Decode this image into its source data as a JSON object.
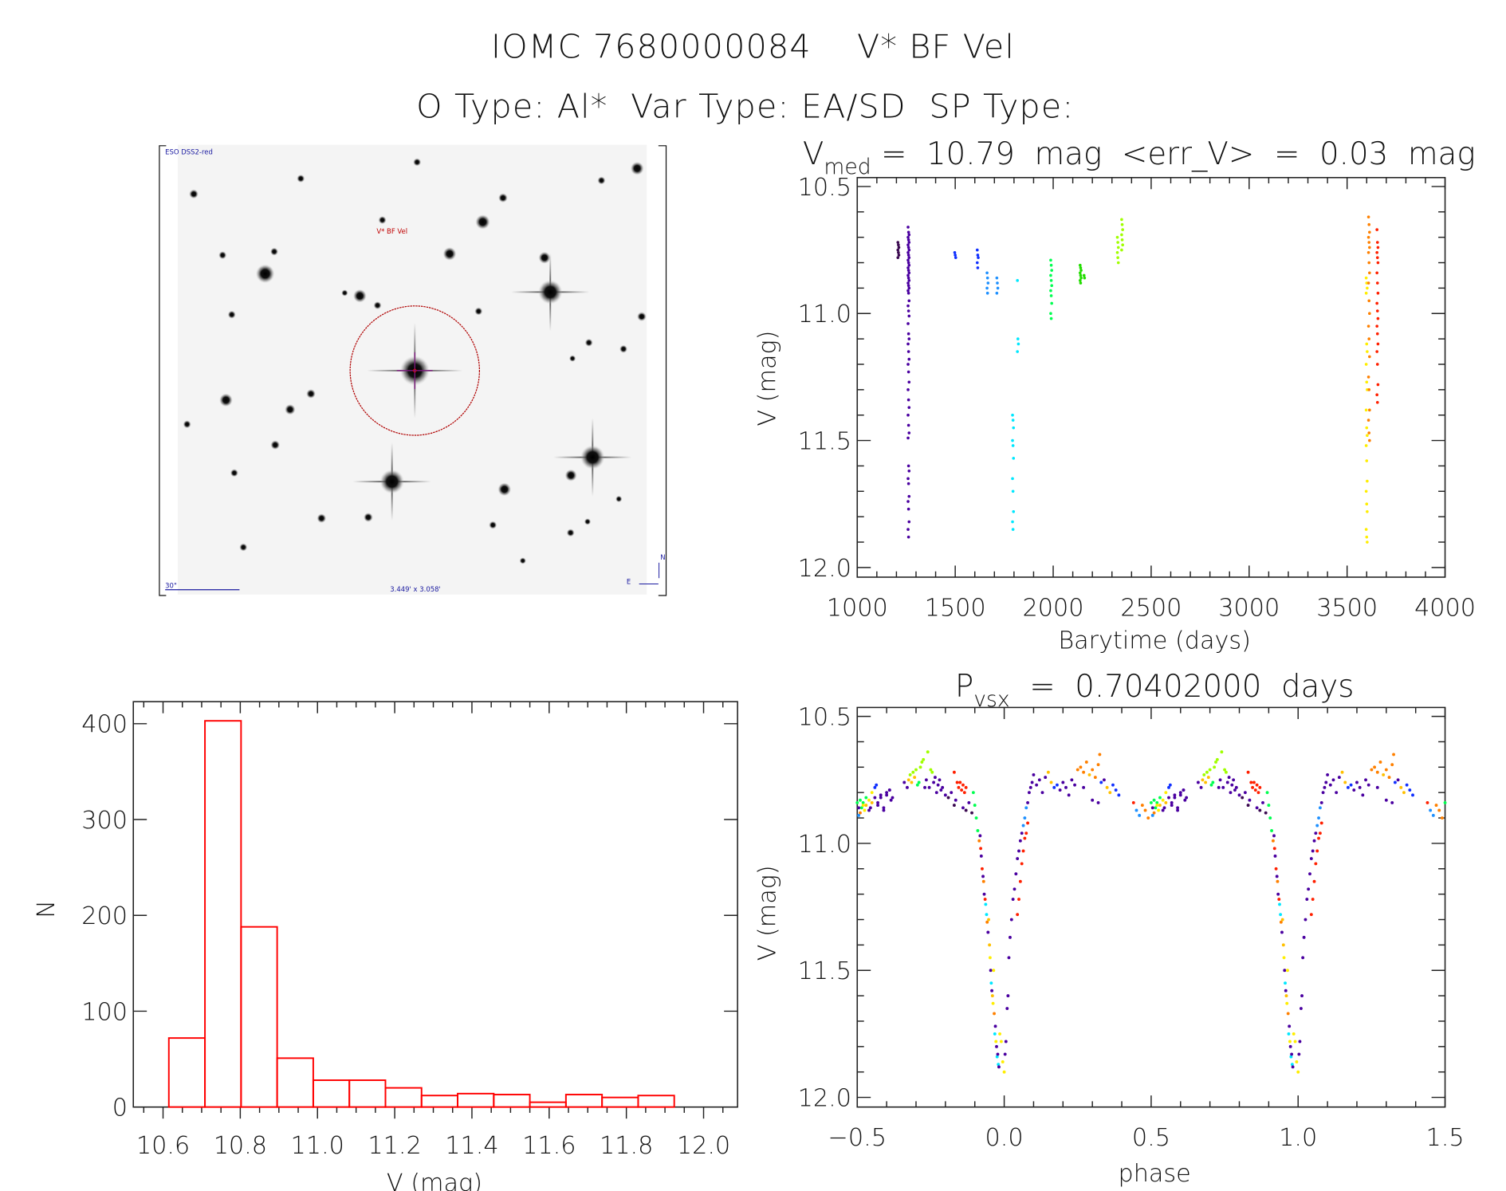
{
  "title_line1": "IOMC 7680000084    V* BF Vel",
  "title_line2": "O Type: Al*  Var Type: EA/SD  SP Type:",
  "finder_image": {
    "survey_label": "ESO DSS2-red",
    "target_label": "V* BF Vel",
    "scale_label": "30\"",
    "field_label": "3.449' x 3.058'",
    "north_label": "N",
    "east_label": "E",
    "circle_color": "#b00000",
    "label_color": "#1a1aa0"
  },
  "palette": [
    "#3b0a50",
    "#4a00a0",
    "#1030ff",
    "#1e90ff",
    "#00e8ff",
    "#00ff50",
    "#22dd00",
    "#a0ff00",
    "#ffee00",
    "#ffc000",
    "#ff8000",
    "#ff2000"
  ],
  "chart_data": [
    {
      "id": "lightcurve",
      "type": "scatter",
      "title_main": "V",
      "title_sub": "med",
      "title_rest": " =  10.79  mag  <err_V>  =  0.03  mag",
      "xlabel": "Barytime (days)",
      "ylabel": "V (mag)",
      "xlim": [
        1000,
        4000
      ],
      "ylim": [
        10.465,
        12.038
      ],
      "y_inverted": true,
      "xticks": [
        "1000",
        "1500",
        "2000",
        "2500",
        "3000",
        "3500",
        "4000"
      ],
      "yticks": [
        "10.5",
        "11.0",
        "11.5",
        "12.0"
      ],
      "groups": [
        {
          "t": 1210,
          "c": 0,
          "mags": [
            10.72,
            10.73,
            10.74,
            10.75,
            10.76,
            10.77,
            10.78
          ]
        },
        {
          "t": 1262,
          "c": 1,
          "mags": [
            10.66,
            10.68,
            10.69,
            10.7,
            10.71,
            10.72,
            10.73,
            10.74,
            10.75,
            10.76,
            10.77,
            10.78,
            10.79,
            10.8,
            10.81,
            10.82,
            10.83,
            10.84,
            10.85,
            10.86,
            10.87,
            10.88,
            10.89,
            10.9,
            10.91,
            10.92,
            10.95,
            10.97,
            10.99,
            11.01,
            11.04,
            11.08,
            11.1,
            11.12,
            11.15,
            11.18,
            11.2,
            11.23,
            11.27,
            11.3,
            11.34,
            11.37,
            11.4,
            11.44,
            11.47,
            11.49,
            11.6,
            11.62,
            11.65,
            11.67,
            11.72,
            11.74,
            11.77,
            11.82,
            11.85,
            11.88
          ]
        },
        {
          "t": 1500,
          "c": 2,
          "mags": [
            10.76,
            10.77,
            10.78
          ]
        },
        {
          "t": 1615,
          "c": 2,
          "mags": [
            10.75,
            10.77,
            10.78,
            10.8,
            10.82
          ]
        },
        {
          "t": 1665,
          "c": 3,
          "mags": [
            10.84,
            10.86,
            10.88,
            10.9,
            10.92
          ]
        },
        {
          "t": 1715,
          "c": 3,
          "mags": [
            10.86,
            10.88,
            10.9,
            10.92
          ]
        },
        {
          "t": 1820,
          "c": 4,
          "mags": [
            10.87,
            11.1,
            11.12,
            11.15
          ]
        },
        {
          "t": 1795,
          "c": 4,
          "mags": [
            11.4,
            11.42,
            11.45,
            11.5,
            11.52,
            11.57,
            11.65,
            11.7,
            11.78,
            11.82,
            11.85
          ]
        },
        {
          "t": 1990,
          "c": 5,
          "mags": [
            10.79,
            10.81,
            10.83,
            10.85,
            10.87,
            10.89,
            10.91,
            10.93,
            10.96,
            11.0,
            11.02
          ]
        },
        {
          "t": 2140,
          "c": 6,
          "mags": [
            10.81,
            10.82,
            10.83,
            10.84,
            10.85,
            10.86,
            10.87,
            10.88
          ]
        },
        {
          "t": 2160,
          "c": 6,
          "mags": [
            10.85,
            10.86
          ]
        },
        {
          "t": 2330,
          "c": 7,
          "mags": [
            10.7,
            10.72,
            10.74,
            10.76,
            10.78,
            10.8
          ]
        },
        {
          "t": 2352,
          "c": 7,
          "mags": [
            10.63,
            10.65,
            10.67,
            10.69,
            10.71,
            10.73,
            10.75
          ]
        },
        {
          "t": 3600,
          "c": 8,
          "mags": [
            10.86,
            10.88,
            10.9,
            10.92,
            11.12,
            11.15,
            11.2,
            11.27,
            11.3,
            11.38,
            11.45,
            11.48,
            11.52,
            11.58,
            11.66,
            11.7,
            11.75,
            11.78,
            11.85,
            11.88,
            11.9
          ]
        },
        {
          "t": 3612,
          "c": 10,
          "mags": [
            10.62,
            10.65,
            10.68,
            10.7,
            10.72,
            10.74,
            10.76,
            10.8,
            10.84,
            10.88,
            10.95,
            11.0,
            11.05,
            11.1,
            11.17,
            11.25,
            11.3,
            11.38,
            11.42,
            11.47,
            11.5
          ]
        },
        {
          "t": 3655,
          "c": 11,
          "mags": [
            10.67,
            10.72,
            10.74,
            10.76,
            10.78,
            10.8,
            10.84,
            10.88,
            10.92,
            10.96,
            10.99,
            11.02,
            11.05,
            11.08,
            11.12,
            11.15,
            11.2,
            11.28,
            11.32,
            11.35
          ]
        }
      ]
    },
    {
      "id": "histogram",
      "type": "bar",
      "xlabel": "V (mag)",
      "ylabel": "N",
      "xlim": [
        10.523,
        12.088
      ],
      "ylim": [
        0,
        423
      ],
      "xticks": [
        "10.6",
        "10.8",
        "11.0",
        "11.2",
        "11.4",
        "11.6",
        "11.8",
        "12.0"
      ],
      "yticks": [
        "0",
        "100",
        "200",
        "300",
        "400"
      ],
      "bin_start": 10.615,
      "bin_width": 0.0935,
      "counts": [
        72,
        403,
        188,
        51,
        28,
        28,
        20,
        12,
        14,
        13,
        5,
        13,
        10,
        12
      ],
      "bar_color": "#ff0000"
    },
    {
      "id": "phased",
      "type": "scatter",
      "title_main": "P",
      "title_sub": "vsx",
      "title_rest": "  =  0.70402000  days",
      "xlabel": "phase",
      "ylabel": "V (mag)",
      "xlim": [
        -0.5,
        1.5
      ],
      "ylim": [
        10.465,
        12.038
      ],
      "y_inverted": true,
      "xticks": [
        "−0.5",
        "0.0",
        "0.5",
        "1.0",
        "1.5"
      ],
      "yticks": [
        "10.5",
        "11.0",
        "11.5",
        "12.0"
      ],
      "period_days": 0.70402,
      "points": [
        [
          -0.49,
          10.88,
          10
        ],
        [
          -0.485,
          10.86,
          5
        ],
        [
          -0.48,
          10.84,
          5
        ],
        [
          -0.475,
          10.87,
          8
        ],
        [
          -0.47,
          10.85,
          9
        ],
        [
          -0.46,
          10.83,
          8
        ],
        [
          -0.455,
          10.86,
          1
        ],
        [
          -0.45,
          10.84,
          9
        ],
        [
          -0.44,
          10.82,
          1
        ],
        [
          -0.435,
          10.77,
          2
        ],
        [
          -0.43,
          10.85,
          1
        ],
        [
          -0.42,
          10.82,
          1
        ],
        [
          -0.41,
          10.87,
          1
        ],
        [
          -0.4,
          10.81,
          1
        ],
        [
          -0.39,
          10.79,
          1
        ],
        [
          -0.385,
          10.83,
          1
        ],
        [
          -0.495,
          10.89,
          3
        ],
        [
          -0.34,
          10.76,
          1
        ],
        [
          -0.33,
          10.78,
          1
        ],
        [
          -0.325,
          10.75,
          9
        ],
        [
          -0.32,
          10.73,
          7
        ],
        [
          -0.315,
          10.76,
          9
        ],
        [
          -0.31,
          10.72,
          7
        ],
        [
          -0.305,
          10.74,
          9
        ],
        [
          -0.3,
          10.71,
          7
        ],
        [
          -0.295,
          10.77,
          5
        ],
        [
          -0.29,
          10.76,
          5
        ],
        [
          -0.285,
          10.7,
          7
        ],
        [
          -0.28,
          10.68,
          7
        ],
        [
          -0.275,
          10.67,
          7
        ],
        [
          -0.27,
          10.78,
          1
        ],
        [
          -0.265,
          10.75,
          1
        ],
        [
          -0.26,
          10.64,
          7
        ],
        [
          -0.255,
          10.78,
          1
        ],
        [
          -0.25,
          10.71,
          7
        ],
        [
          -0.245,
          10.72,
          7
        ],
        [
          -0.24,
          10.76,
          1
        ],
        [
          -0.235,
          10.74,
          1
        ],
        [
          -0.23,
          10.8,
          1
        ],
        [
          -0.225,
          10.77,
          1
        ],
        [
          -0.22,
          10.75,
          1
        ],
        [
          -0.215,
          10.79,
          1
        ],
        [
          -0.21,
          10.78,
          1
        ],
        [
          -0.2,
          10.81,
          1
        ],
        [
          -0.19,
          10.82,
          0
        ],
        [
          -0.18,
          10.8,
          1
        ],
        [
          -0.17,
          10.85,
          0
        ],
        [
          -0.165,
          10.83,
          1
        ],
        [
          -0.17,
          10.72,
          11
        ],
        [
          -0.16,
          10.76,
          11
        ],
        [
          -0.155,
          10.78,
          11
        ],
        [
          -0.15,
          10.76,
          11
        ],
        [
          -0.145,
          10.79,
          11
        ],
        [
          -0.14,
          10.77,
          11
        ],
        [
          -0.135,
          10.8,
          11
        ],
        [
          -0.13,
          10.78,
          11
        ],
        [
          -0.14,
          10.86,
          1
        ],
        [
          -0.13,
          10.87,
          0
        ],
        [
          -0.12,
          10.84,
          1
        ],
        [
          -0.11,
          10.88,
          0
        ],
        [
          -0.105,
          10.8,
          5
        ],
        [
          -0.1,
          10.85,
          5
        ],
        [
          -0.095,
          10.9,
          5
        ],
        [
          -0.09,
          10.95,
          5
        ],
        [
          -0.085,
          10.99,
          10
        ],
        [
          -0.082,
          10.97,
          1
        ],
        [
          -0.08,
          11.02,
          11
        ],
        [
          -0.078,
          11.05,
          1
        ],
        [
          -0.075,
          11.1,
          11
        ],
        [
          -0.072,
          11.13,
          1
        ],
        [
          -0.07,
          11.15,
          10
        ],
        [
          -0.068,
          11.2,
          1
        ],
        [
          -0.065,
          11.22,
          11
        ],
        [
          -0.063,
          11.24,
          4
        ],
        [
          -0.06,
          11.28,
          4
        ],
        [
          -0.058,
          11.31,
          10
        ],
        [
          -0.055,
          11.35,
          1
        ],
        [
          -0.053,
          11.3,
          9
        ],
        [
          -0.05,
          11.4,
          9
        ],
        [
          -0.048,
          11.45,
          8
        ],
        [
          -0.046,
          11.5,
          1
        ],
        [
          -0.044,
          11.55,
          4
        ],
        [
          -0.042,
          11.58,
          1
        ],
        [
          -0.04,
          11.6,
          9
        ],
        [
          -0.038,
          11.63,
          8
        ],
        [
          -0.036,
          11.5,
          8
        ],
        [
          -0.034,
          11.67,
          10
        ],
        [
          -0.032,
          11.75,
          4
        ],
        [
          -0.03,
          11.72,
          1
        ],
        [
          -0.028,
          11.78,
          8
        ],
        [
          -0.026,
          11.8,
          1
        ],
        [
          -0.024,
          11.84,
          4
        ],
        [
          -0.022,
          11.83,
          1
        ],
        [
          -0.02,
          11.87,
          4
        ],
        [
          -0.018,
          11.88,
          1
        ],
        [
          -0.015,
          11.75,
          8
        ],
        [
          -0.01,
          11.78,
          8
        ],
        [
          -0.005,
          11.86,
          8
        ],
        [
          0.0,
          11.9,
          8
        ],
        [
          0.003,
          11.83,
          1
        ],
        [
          0.006,
          11.78,
          1
        ],
        [
          0.01,
          11.65,
          1
        ],
        [
          0.013,
          11.6,
          1
        ],
        [
          0.016,
          11.45,
          1
        ],
        [
          0.02,
          11.37,
          1
        ],
        [
          0.025,
          11.3,
          1
        ],
        [
          0.03,
          11.22,
          1
        ],
        [
          0.035,
          11.18,
          1
        ],
        [
          0.04,
          11.12,
          1
        ],
        [
          0.045,
          11.06,
          1
        ],
        [
          0.05,
          11.03,
          1
        ],
        [
          0.055,
          10.99,
          1
        ],
        [
          0.06,
          10.96,
          1
        ],
        [
          0.065,
          10.93,
          3
        ],
        [
          0.07,
          10.9,
          3
        ],
        [
          0.075,
          10.86,
          3
        ],
        [
          0.08,
          10.84,
          1
        ],
        [
          0.085,
          10.8,
          1
        ],
        [
          0.09,
          10.78,
          1
        ],
        [
          0.095,
          10.76,
          1
        ],
        [
          0.045,
          11.28,
          11
        ],
        [
          0.05,
          11.22,
          11
        ],
        [
          0.055,
          11.15,
          11
        ],
        [
          0.06,
          11.08,
          11
        ],
        [
          0.065,
          11.03,
          11
        ],
        [
          0.07,
          10.98,
          11
        ],
        [
          0.075,
          10.96,
          11
        ],
        [
          0.08,
          10.92,
          11
        ],
        [
          0.1,
          10.73,
          1
        ],
        [
          0.11,
          10.77,
          1
        ],
        [
          0.12,
          10.75,
          1
        ],
        [
          0.13,
          10.8,
          1
        ],
        [
          0.14,
          10.74,
          1
        ],
        [
          0.15,
          10.72,
          9
        ],
        [
          0.16,
          10.76,
          9
        ],
        [
          0.17,
          10.78,
          2
        ],
        [
          0.18,
          10.77,
          2
        ],
        [
          0.19,
          10.79,
          1
        ],
        [
          0.2,
          10.76,
          1
        ],
        [
          0.21,
          10.78,
          1
        ],
        [
          0.22,
          10.81,
          1
        ],
        [
          0.23,
          10.75,
          1
        ],
        [
          0.24,
          10.77,
          1
        ],
        [
          0.25,
          10.71,
          10
        ],
        [
          0.26,
          10.7,
          10
        ],
        [
          0.27,
          10.72,
          10
        ],
        [
          0.28,
          10.68,
          10
        ],
        [
          0.29,
          10.73,
          9
        ],
        [
          0.3,
          10.71,
          10
        ],
        [
          0.31,
          10.74,
          10
        ],
        [
          0.32,
          10.69,
          10
        ],
        [
          0.325,
          10.65,
          10
        ],
        [
          0.33,
          10.76,
          2
        ],
        [
          0.34,
          10.75,
          1
        ],
        [
          0.35,
          10.78,
          9
        ],
        [
          0.36,
          10.8,
          9
        ],
        [
          0.37,
          10.77,
          2
        ],
        [
          0.38,
          10.79,
          2
        ],
        [
          0.39,
          10.81,
          2
        ],
        [
          0.3,
          10.83,
          1
        ],
        [
          0.27,
          10.78,
          1
        ],
        [
          0.32,
          10.84,
          1
        ],
        [
          0.44,
          10.84,
          11
        ],
        [
          0.45,
          10.87,
          3
        ],
        [
          0.46,
          10.89,
          3
        ],
        [
          0.47,
          10.85,
          10
        ],
        [
          0.48,
          10.87,
          10
        ],
        [
          0.49,
          10.9,
          10
        ],
        [
          0.5,
          10.84,
          5
        ],
        [
          0.505,
          10.86,
          1
        ],
        [
          0.51,
          10.83,
          5
        ],
        [
          0.52,
          10.85,
          8
        ],
        [
          0.53,
          10.82,
          5
        ],
        [
          0.54,
          10.87,
          1
        ],
        [
          0.55,
          10.8,
          8
        ],
        [
          0.56,
          10.78,
          2
        ],
        [
          0.57,
          10.84,
          1
        ],
        [
          0.58,
          10.81,
          1
        ],
        [
          0.59,
          10.86,
          1
        ],
        [
          0.6,
          10.8,
          1
        ],
        [
          0.61,
          10.79,
          1
        ],
        [
          0.62,
          10.82,
          1
        ]
      ]
    }
  ]
}
